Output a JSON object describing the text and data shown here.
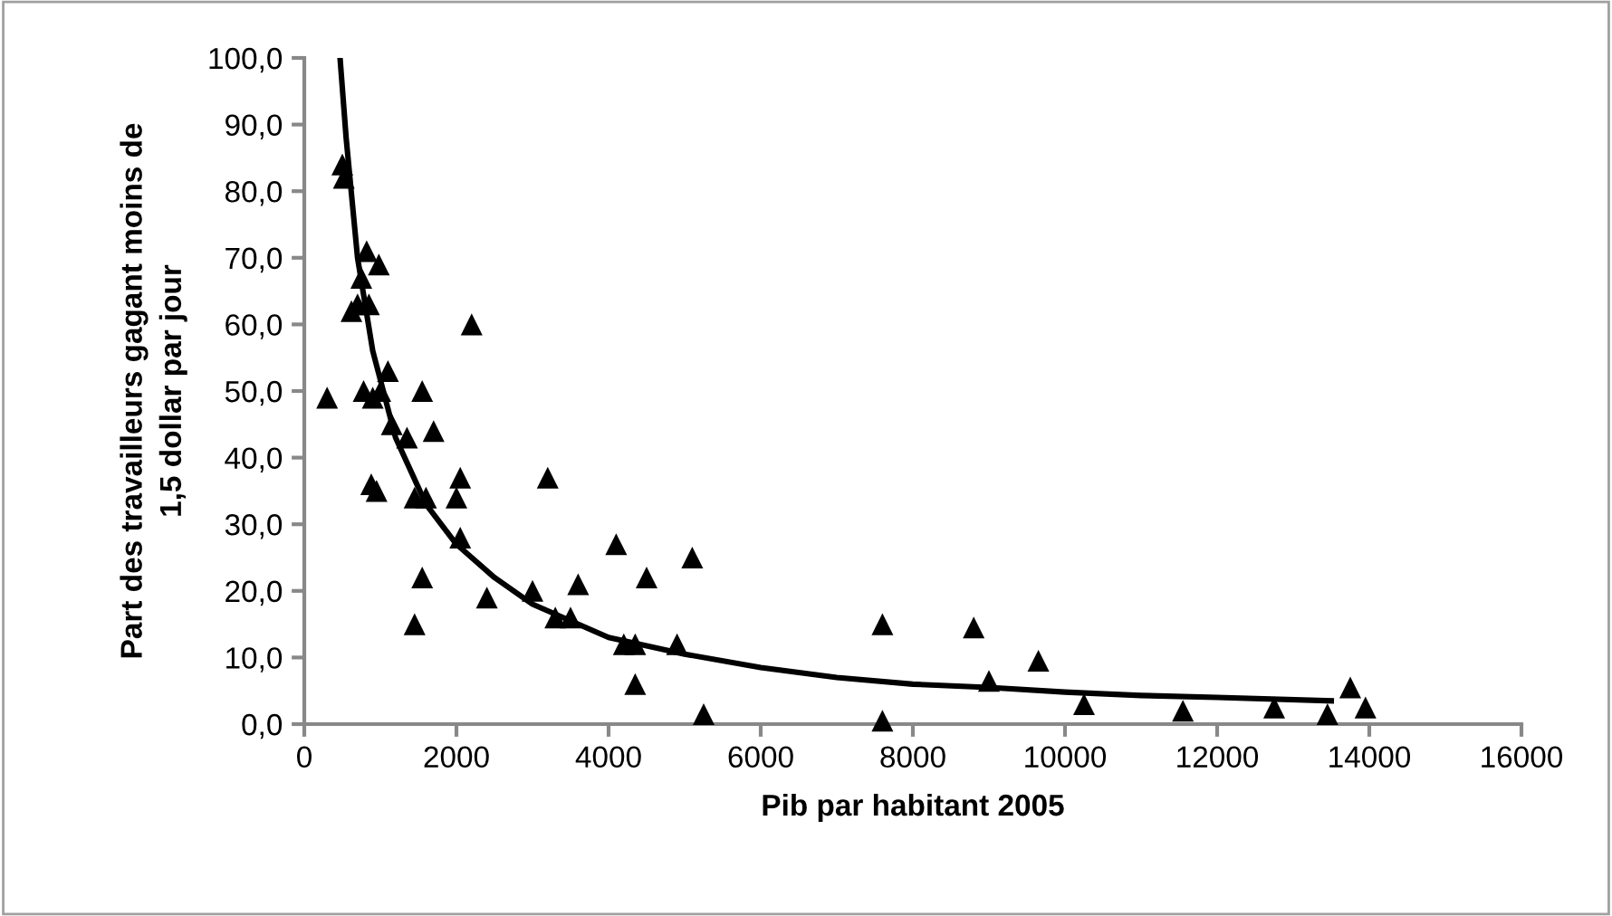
{
  "chart_data": {
    "type": "scatter",
    "xlabel": "Pib par habitant 2005",
    "ylabel": "Part des travailleurs gagant moins de\n1,5 dollar par jour",
    "xlim": [
      0,
      16000
    ],
    "xticks": [
      0,
      2000,
      4000,
      6000,
      8000,
      10000,
      12000,
      14000,
      16000
    ],
    "ylim": [
      0,
      100
    ],
    "yticks": [
      {
        "value": 0,
        "label": "0,0"
      },
      {
        "value": 10,
        "label": "10,0"
      },
      {
        "value": 20,
        "label": "20,0"
      },
      {
        "value": 30,
        "label": "30,0"
      },
      {
        "value": 40,
        "label": "40,0"
      },
      {
        "value": 50,
        "label": "50,0"
      },
      {
        "value": 60,
        "label": "60,0"
      },
      {
        "value": 70,
        "label": "70,0"
      },
      {
        "value": 80,
        "label": "80,0"
      },
      {
        "value": 90,
        "label": "90,0"
      },
      {
        "value": 100,
        "label": "100,0"
      }
    ],
    "series": [
      {
        "color": "#000000",
        "marker": "triangle",
        "x": [
          300,
          500,
          520,
          620,
          700,
          750,
          780,
          820,
          850,
          880,
          900,
          950,
          980,
          1000,
          1100,
          1150,
          1350,
          1450,
          1450,
          1550,
          1550,
          1600,
          1700,
          2000,
          2050,
          2050,
          2200,
          2400,
          3000,
          3200,
          3300,
          3500,
          3600,
          4100,
          4200,
          4350,
          4350,
          4500,
          4900,
          5100,
          5250,
          7600,
          7600,
          8800,
          9000,
          9650,
          10250,
          11550,
          12750,
          13450,
          13750,
          13950
        ],
        "values": [
          49,
          84,
          82,
          62,
          63,
          67,
          50,
          71,
          63,
          36,
          49,
          35,
          69,
          50,
          53,
          45,
          43,
          34,
          15,
          22,
          50,
          34,
          44,
          34,
          37,
          28,
          60,
          19,
          20,
          37,
          16,
          16,
          21,
          27,
          12,
          12,
          6,
          22,
          12,
          25,
          1.5,
          15,
          0.5,
          14.5,
          6.5,
          9.5,
          3,
          2,
          2.5,
          1.5,
          5.5,
          2.5
        ]
      },
      {
        "type": "line",
        "color": "#000000",
        "marker": "none",
        "line_style": "solid",
        "x": [
          470,
          550,
          700,
          900,
          1200,
          1600,
          2000,
          2500,
          3000,
          4000,
          5000,
          6000,
          7000,
          8000,
          9000,
          10000,
          11000,
          12000,
          13500
        ],
        "values": [
          100,
          88,
          70,
          56,
          43,
          33,
          27,
          22,
          18,
          13,
          10.5,
          8.5,
          7,
          6,
          5.5,
          4.8,
          4.3,
          4,
          3.5
        ]
      }
    ]
  }
}
